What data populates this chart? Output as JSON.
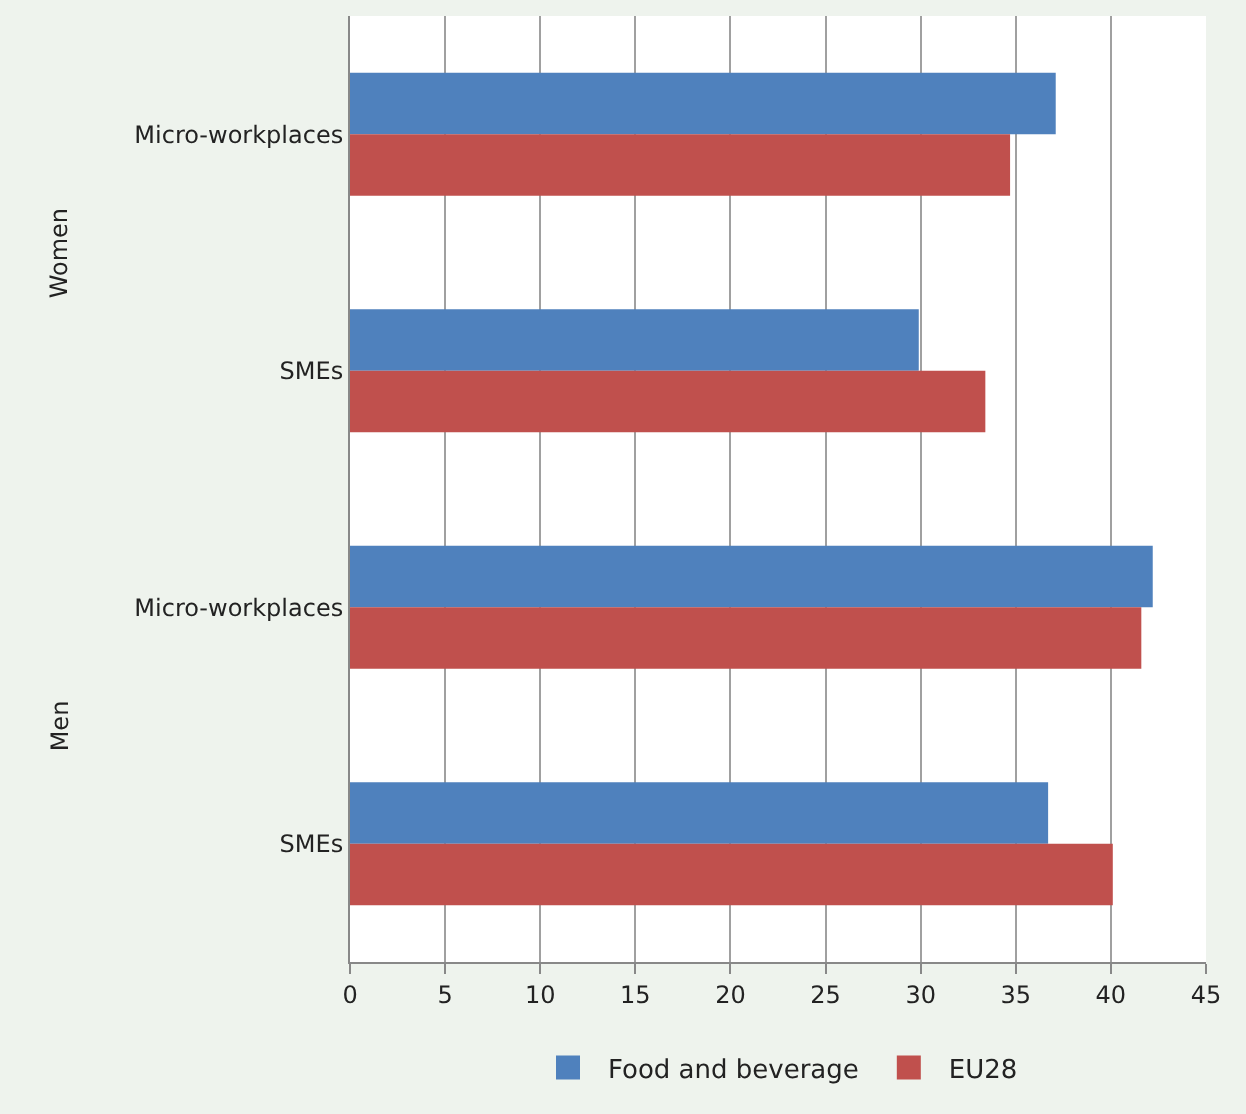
{
  "chart_data": {
    "type": "bar",
    "orientation": "horizontal",
    "categories": [
      "Micro-workplaces",
      "SMEs",
      "Micro-workplaces",
      "SMEs"
    ],
    "series": [
      {
        "name": "Food and beverage",
        "color": "#4f81bd",
        "values": [
          37.1,
          29.9,
          42.2,
          36.7
        ]
      },
      {
        "name": "EU28",
        "color": "#c0504d",
        "values": [
          34.7,
          33.4,
          41.6,
          40.1
        ]
      }
    ],
    "xlim": [
      0,
      45
    ],
    "xticks": [
      0,
      5,
      10,
      15,
      20,
      25,
      30,
      35,
      40,
      45
    ],
    "grid": "x",
    "legend": "bottom",
    "annotations": [
      "Women",
      "Men"
    ]
  }
}
